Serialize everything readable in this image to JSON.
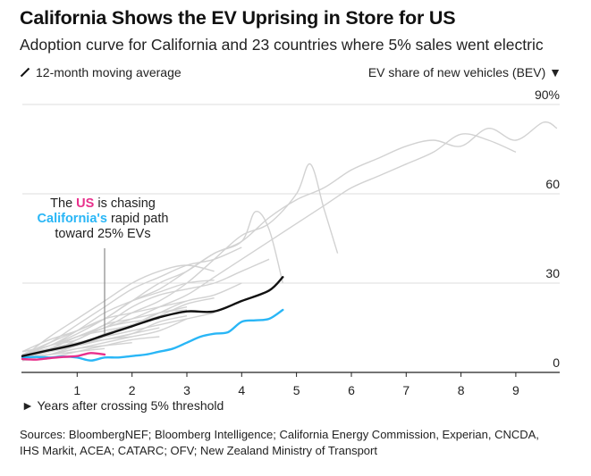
{
  "header": {
    "title": "California Shows the EV Uprising in Store for US",
    "subtitle": "Adoption curve for California and 23 countries where 5% sales went electric"
  },
  "legend": {
    "moving_average": "12-month moving average",
    "y_axis_title": "EV share of new vehicles (BEV) ▼"
  },
  "x_axis_label": "► Years after crossing 5% threshold",
  "source": "Sources: BloombergNEF; Bloomberg Intelligence; California Energy Commission, Experian, CNCDA, IHS Markit, ACEA; CATARC; OFV; New Zealand Ministry of Transport",
  "annotation": {
    "line1_pre": "The ",
    "line1_us": "US",
    "line1_post": " is chasing",
    "line2_ca": "California's",
    "line2_post": " rapid path",
    "line3": "toward 25% EVs"
  },
  "colors": {
    "us": "#e8308c",
    "california": "#29b6f6",
    "average": "#111111",
    "countries": "#d2d2d2",
    "grid": "#dedede"
  },
  "chart_data": {
    "type": "line",
    "x_unit": "years after crossing 5% threshold",
    "y_unit": "EV share of new vehicles (BEV), %",
    "xlim": [
      0,
      9.8
    ],
    "ylim": [
      0,
      90
    ],
    "x_ticks": [
      1,
      2,
      3,
      4,
      5,
      6,
      7,
      8,
      9
    ],
    "y_ticks": [
      0,
      30,
      60,
      90
    ],
    "y_tick_labels": [
      "0",
      "30",
      "60",
      "90%"
    ],
    "grid": "horizontal",
    "highlighted": [
      {
        "key": "us",
        "x": [
          0,
          0.25,
          0.5,
          0.75,
          1.0,
          1.25,
          1.5
        ],
        "y": [
          4.5,
          4.3,
          4.8,
          5.2,
          5.5,
          6.5,
          6.0
        ]
      },
      {
        "key": "california",
        "x": [
          0,
          0.25,
          0.5,
          0.75,
          1.0,
          1.25,
          1.5,
          1.75,
          2.0,
          2.25,
          2.5,
          2.75,
          3.0,
          3.25,
          3.5,
          3.75,
          4.0,
          4.25,
          4.5,
          4.75
        ],
        "y": [
          5.0,
          5.2,
          5.0,
          5.3,
          5.0,
          4.0,
          5.0,
          5.0,
          5.5,
          6.0,
          7.0,
          8.0,
          10.0,
          12.0,
          13.0,
          13.5,
          17.0,
          17.5,
          18.0,
          21.0
        ]
      },
      {
        "key": "average",
        "x": [
          0,
          0.5,
          1.0,
          1.5,
          2.0,
          2.5,
          3.0,
          3.5,
          4.0,
          4.5,
          4.75
        ],
        "y": [
          5.5,
          7.5,
          9.5,
          12.5,
          15.5,
          18.5,
          20.5,
          20.5,
          24.0,
          27.5,
          32.0
        ]
      }
    ],
    "background_series": [
      {
        "x": [
          0,
          0.5,
          1.0,
          1.5,
          2.0,
          2.5,
          3.0,
          3.5,
          4.0,
          4.5,
          5.0,
          5.5,
          6.0,
          6.5,
          7.0,
          7.5,
          8.0,
          8.5,
          9.0,
          9.5,
          9.75
        ],
        "y": [
          6,
          10,
          14,
          18,
          24,
          28,
          34,
          40,
          44,
          52,
          58,
          62,
          68,
          72,
          76,
          78,
          76,
          82,
          78,
          84,
          82
        ]
      },
      {
        "x": [
          0,
          0.5,
          1.0,
          1.5,
          2.0,
          2.5,
          3.0,
          3.5,
          4.0,
          4.5,
          5.0,
          5.5,
          6.0,
          6.5,
          7.0,
          7.5,
          8.0,
          8.5,
          9.0
        ],
        "y": [
          5,
          8,
          12,
          15,
          18,
          22,
          26,
          32,
          38,
          44,
          50,
          56,
          62,
          66,
          70,
          74,
          80,
          78,
          74
        ]
      },
      {
        "x": [
          0,
          0.5,
          1.0,
          1.5,
          2.0,
          2.5,
          3.0,
          3.5,
          4.0,
          4.5,
          5.0,
          5.25,
          5.5,
          5.75
        ],
        "y": [
          7,
          9,
          12,
          15,
          20,
          24,
          30,
          38,
          46,
          50,
          60,
          70,
          55,
          40
        ]
      },
      {
        "x": [
          0,
          0.5,
          1.0,
          1.5,
          2.0,
          2.5,
          3.0,
          3.5,
          4.0,
          4.25,
          4.5,
          4.75
        ],
        "y": [
          6,
          9,
          13,
          18,
          24,
          30,
          34,
          40,
          44,
          54,
          48,
          30
        ]
      },
      {
        "x": [
          0,
          0.5,
          1.0,
          1.5,
          2.0,
          2.5,
          3.0,
          3.5,
          4.0,
          4.5
        ],
        "y": [
          5,
          8,
          12,
          16,
          22,
          26,
          28,
          30,
          34,
          38
        ]
      },
      {
        "x": [
          0,
          0.5,
          1.0,
          1.5,
          2.0,
          2.5,
          3.0,
          3.5,
          4.0
        ],
        "y": [
          6,
          10,
          16,
          22,
          28,
          32,
          36,
          38,
          42
        ]
      },
      {
        "x": [
          0,
          0.5,
          1.0,
          1.5,
          2.0,
          2.5,
          3.0,
          3.5
        ],
        "y": [
          5,
          12,
          18,
          24,
          30,
          34,
          36,
          34
        ]
      },
      {
        "x": [
          0,
          0.5,
          1.0,
          1.5,
          2.0,
          2.5,
          3.0
        ],
        "y": [
          7,
          11,
          14,
          18,
          20,
          22,
          24
        ]
      },
      {
        "x": [
          0,
          0.5,
          1.0,
          1.5,
          2.0,
          2.5,
          3.0,
          3.5
        ],
        "y": [
          6,
          8,
          10,
          12,
          14,
          16,
          18,
          20
        ]
      },
      {
        "x": [
          0,
          0.5,
          1.0,
          1.5,
          2.0,
          2.5
        ],
        "y": [
          5,
          7,
          9,
          11,
          13,
          15
        ]
      },
      {
        "x": [
          0,
          0.5,
          1.0,
          1.5,
          2.0,
          2.5,
          3.0
        ],
        "y": [
          6,
          9,
          11,
          16,
          18,
          20,
          22
        ]
      },
      {
        "x": [
          0,
          0.5,
          1.0,
          1.5,
          2.0
        ],
        "y": [
          5,
          6,
          8,
          9,
          10
        ]
      },
      {
        "x": [
          0,
          0.5,
          1.0,
          1.5,
          2.0,
          2.5,
          3.0
        ],
        "y": [
          4,
          6,
          8,
          10,
          12,
          14,
          18
        ]
      },
      {
        "x": [
          0,
          0.5,
          1.0,
          1.5,
          2.0,
          2.5,
          3.0,
          3.5,
          4.0
        ],
        "y": [
          5,
          7,
          9,
          13,
          16,
          20,
          24,
          26,
          30
        ]
      },
      {
        "x": [
          0,
          0.5,
          1.0,
          1.5,
          2.0,
          2.5,
          3.0
        ],
        "y": [
          6,
          8,
          12,
          14,
          16,
          20,
          21
        ]
      },
      {
        "x": [
          0,
          0.5,
          1.0,
          1.5,
          2.0
        ],
        "y": [
          5,
          7,
          10,
          12,
          14
        ]
      },
      {
        "x": [
          0,
          0.5,
          1.0,
          1.5,
          2.0,
          2.5
        ],
        "y": [
          4,
          5,
          7,
          9,
          11,
          12
        ]
      },
      {
        "x": [
          0,
          0.5,
          1.0,
          1.5,
          2.0,
          2.5,
          3.0,
          3.5
        ],
        "y": [
          7,
          9,
          14,
          20,
          24,
          27,
          30,
          31
        ]
      },
      {
        "x": [
          0,
          0.5,
          1.0,
          1.5
        ],
        "y": [
          5,
          6,
          7,
          8
        ]
      },
      {
        "x": [
          0,
          0.5,
          1.0,
          1.5,
          2.0,
          2.5
        ],
        "y": [
          6,
          7,
          11,
          15,
          17,
          18
        ]
      },
      {
        "x": [
          0,
          0.5,
          1.0,
          1.5,
          2.0,
          2.5,
          3.0
        ],
        "y": [
          5,
          8,
          10,
          11,
          13,
          17,
          19
        ]
      },
      {
        "x": [
          0,
          0.5,
          1.0,
          1.5,
          2.0,
          2.5,
          3.0,
          3.5
        ],
        "y": [
          4,
          6,
          9,
          12,
          16,
          19,
          23,
          25
        ]
      },
      {
        "x": [
          0,
          0.5,
          1.0,
          1.5,
          2.0
        ],
        "y": [
          6,
          8,
          9,
          11,
          12
        ]
      }
    ]
  }
}
